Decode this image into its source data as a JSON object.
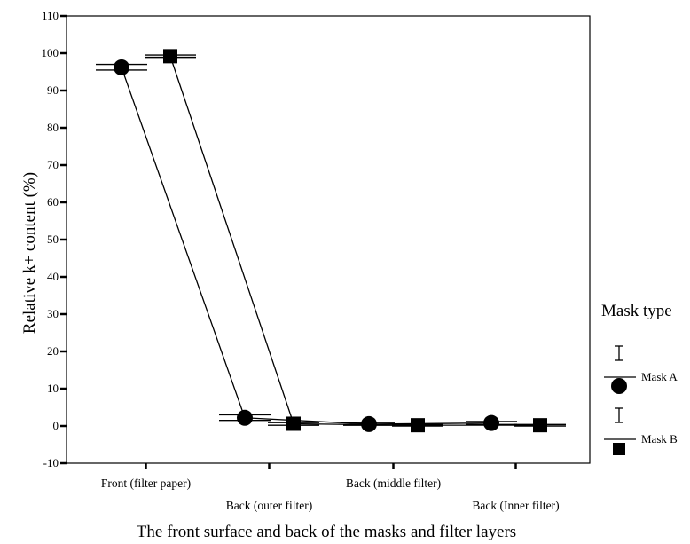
{
  "chart_data": {
    "type": "line",
    "xlabel": "The front surface and back of the masks and filter layers",
    "ylabel": "Relative k+ content (%)",
    "categories": [
      "Front (filter paper)",
      "Back (outer filter)",
      "Back (middle filter)",
      "Back (Inner filter)"
    ],
    "ylim": [
      -10,
      110
    ],
    "yticks": [
      -10,
      0,
      10,
      20,
      30,
      40,
      50,
      60,
      70,
      80,
      90,
      100,
      110
    ],
    "grid": false,
    "legend": {
      "title": "Mask type",
      "placement": "right"
    },
    "series": [
      {
        "name": "Mask A",
        "marker": "circle",
        "values": [
          96.2,
          2.2,
          0.5,
          0.8
        ],
        "error_low": [
          95.5,
          1.5,
          0.2,
          0.4
        ],
        "error_high": [
          97.0,
          3.0,
          0.9,
          1.2
        ]
      },
      {
        "name": "Mask B",
        "marker": "square",
        "values": [
          99.2,
          0.6,
          0.2,
          0.2
        ],
        "error_low": [
          98.9,
          0.2,
          0.0,
          0.0
        ],
        "error_high": [
          99.5,
          0.9,
          0.4,
          0.4
        ]
      }
    ]
  }
}
